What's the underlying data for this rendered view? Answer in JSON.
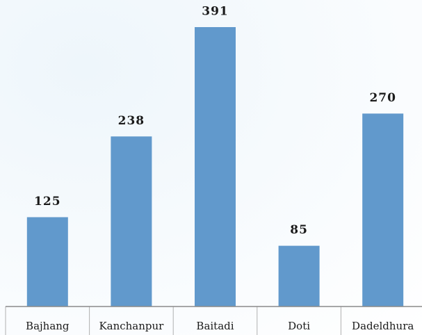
{
  "chart_data": {
    "type": "bar",
    "categories": [
      "Bajhang",
      "Kanchanpur",
      "Baitadi",
      "Doti",
      "Dadeldhura"
    ],
    "values": [
      125,
      238,
      391,
      85,
      270
    ],
    "color": "#6199cc"
  }
}
